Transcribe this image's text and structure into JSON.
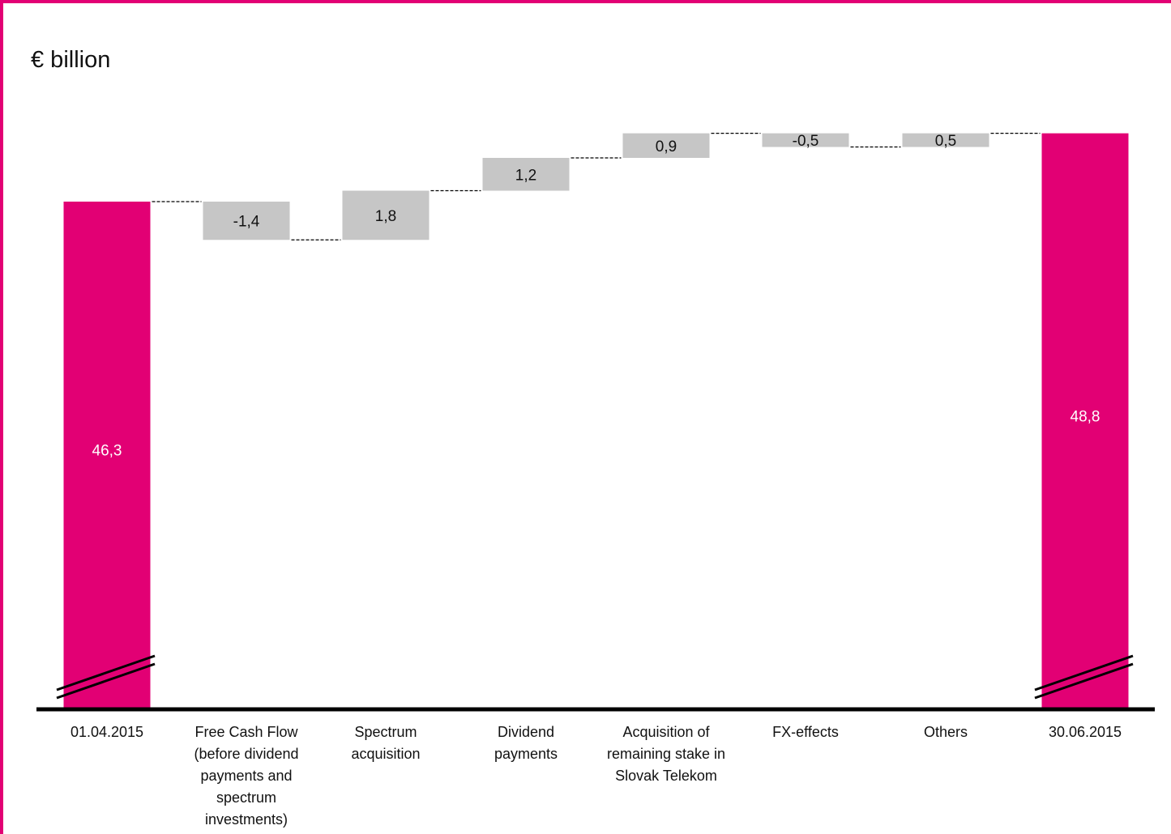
{
  "unit_label": "€ billion",
  "colors": {
    "total_bar": "#e20074",
    "delta_bar": "#c6c6c6",
    "frame": "#e20074",
    "axis": "#000000"
  },
  "chart_data": {
    "type": "bar",
    "subtype": "waterfall",
    "title": "",
    "ylabel": "€ billion",
    "axis_break": true,
    "categories": [
      "01.04.2015",
      "Free Cash Flow\n(before dividend\npayments and\nspectrum\ninvestments)",
      "Spectrum\nacquisition",
      "Dividend\npayments",
      "Acquisition of\nremaining stake in\nSlovak Telekom",
      "FX-effects",
      "Others",
      "30.06.2015"
    ],
    "bars": [
      {
        "kind": "total",
        "value": 46.3,
        "label": "46,3"
      },
      {
        "kind": "delta",
        "value": -1.4,
        "label": "-1,4"
      },
      {
        "kind": "delta",
        "value": 1.8,
        "label": "1,8"
      },
      {
        "kind": "delta",
        "value": 1.2,
        "label": "1,2"
      },
      {
        "kind": "delta",
        "value": 0.9,
        "label": "0,9"
      },
      {
        "kind": "delta",
        "value": -0.5,
        "label": "-0,5"
      },
      {
        "kind": "delta",
        "value": 0.5,
        "label": "0,5"
      },
      {
        "kind": "total",
        "value": 48.8,
        "label": "48,8"
      }
    ]
  }
}
